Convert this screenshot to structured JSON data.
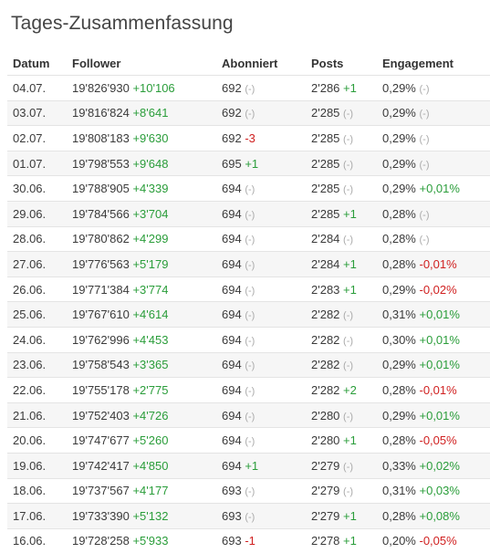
{
  "title": "Tages-Zusammenfassung",
  "headers": [
    "Datum",
    "Follower",
    "Abonniert",
    "Posts",
    "Engagement"
  ],
  "rows": [
    {
      "date": "04.07.",
      "followers": "19'826'930",
      "followers_delta": "+10'106",
      "subscribed": "692",
      "subscribed_delta": "(-)",
      "posts": "2'286",
      "posts_delta": "+1",
      "engagement": "0,29%",
      "engagement_delta": "(-)"
    },
    {
      "date": "03.07.",
      "followers": "19'816'824",
      "followers_delta": "+8'641",
      "subscribed": "692",
      "subscribed_delta": "(-)",
      "posts": "2'285",
      "posts_delta": "(-)",
      "engagement": "0,29%",
      "engagement_delta": "(-)"
    },
    {
      "date": "02.07.",
      "followers": "19'808'183",
      "followers_delta": "+9'630",
      "subscribed": "692",
      "subscribed_delta": "-3",
      "posts": "2'285",
      "posts_delta": "(-)",
      "engagement": "0,29%",
      "engagement_delta": "(-)"
    },
    {
      "date": "01.07.",
      "followers": "19'798'553",
      "followers_delta": "+9'648",
      "subscribed": "695",
      "subscribed_delta": "+1",
      "posts": "2'285",
      "posts_delta": "(-)",
      "engagement": "0,29%",
      "engagement_delta": "(-)"
    },
    {
      "date": "30.06.",
      "followers": "19'788'905",
      "followers_delta": "+4'339",
      "subscribed": "694",
      "subscribed_delta": "(-)",
      "posts": "2'285",
      "posts_delta": "(-)",
      "engagement": "0,29%",
      "engagement_delta": "+0,01%"
    },
    {
      "date": "29.06.",
      "followers": "19'784'566",
      "followers_delta": "+3'704",
      "subscribed": "694",
      "subscribed_delta": "(-)",
      "posts": "2'285",
      "posts_delta": "+1",
      "engagement": "0,28%",
      "engagement_delta": "(-)"
    },
    {
      "date": "28.06.",
      "followers": "19'780'862",
      "followers_delta": "+4'299",
      "subscribed": "694",
      "subscribed_delta": "(-)",
      "posts": "2'284",
      "posts_delta": "(-)",
      "engagement": "0,28%",
      "engagement_delta": "(-)"
    },
    {
      "date": "27.06.",
      "followers": "19'776'563",
      "followers_delta": "+5'179",
      "subscribed": "694",
      "subscribed_delta": "(-)",
      "posts": "2'284",
      "posts_delta": "+1",
      "engagement": "0,28%",
      "engagement_delta": "-0,01%"
    },
    {
      "date": "26.06.",
      "followers": "19'771'384",
      "followers_delta": "+3'774",
      "subscribed": "694",
      "subscribed_delta": "(-)",
      "posts": "2'283",
      "posts_delta": "+1",
      "engagement": "0,29%",
      "engagement_delta": "-0,02%"
    },
    {
      "date": "25.06.",
      "followers": "19'767'610",
      "followers_delta": "+4'614",
      "subscribed": "694",
      "subscribed_delta": "(-)",
      "posts": "2'282",
      "posts_delta": "(-)",
      "engagement": "0,31%",
      "engagement_delta": "+0,01%"
    },
    {
      "date": "24.06.",
      "followers": "19'762'996",
      "followers_delta": "+4'453",
      "subscribed": "694",
      "subscribed_delta": "(-)",
      "posts": "2'282",
      "posts_delta": "(-)",
      "engagement": "0,30%",
      "engagement_delta": "+0,01%"
    },
    {
      "date": "23.06.",
      "followers": "19'758'543",
      "followers_delta": "+3'365",
      "subscribed": "694",
      "subscribed_delta": "(-)",
      "posts": "2'282",
      "posts_delta": "(-)",
      "engagement": "0,29%",
      "engagement_delta": "+0,01%"
    },
    {
      "date": "22.06.",
      "followers": "19'755'178",
      "followers_delta": "+2'775",
      "subscribed": "694",
      "subscribed_delta": "(-)",
      "posts": "2'282",
      "posts_delta": "+2",
      "engagement": "0,28%",
      "engagement_delta": "-0,01%"
    },
    {
      "date": "21.06.",
      "followers": "19'752'403",
      "followers_delta": "+4'726",
      "subscribed": "694",
      "subscribed_delta": "(-)",
      "posts": "2'280",
      "posts_delta": "(-)",
      "engagement": "0,29%",
      "engagement_delta": "+0,01%"
    },
    {
      "date": "20.06.",
      "followers": "19'747'677",
      "followers_delta": "+5'260",
      "subscribed": "694",
      "subscribed_delta": "(-)",
      "posts": "2'280",
      "posts_delta": "+1",
      "engagement": "0,28%",
      "engagement_delta": "-0,05%"
    },
    {
      "date": "19.06.",
      "followers": "19'742'417",
      "followers_delta": "+4'850",
      "subscribed": "694",
      "subscribed_delta": "+1",
      "posts": "2'279",
      "posts_delta": "(-)",
      "engagement": "0,33%",
      "engagement_delta": "+0,02%"
    },
    {
      "date": "18.06.",
      "followers": "19'737'567",
      "followers_delta": "+4'177",
      "subscribed": "693",
      "subscribed_delta": "(-)",
      "posts": "2'279",
      "posts_delta": "(-)",
      "engagement": "0,31%",
      "engagement_delta": "+0,03%"
    },
    {
      "date": "17.06.",
      "followers": "19'733'390",
      "followers_delta": "+5'132",
      "subscribed": "693",
      "subscribed_delta": "(-)",
      "posts": "2'279",
      "posts_delta": "+1",
      "engagement": "0,28%",
      "engagement_delta": "+0,08%"
    },
    {
      "date": "16.06.",
      "followers": "19'728'258",
      "followers_delta": "+5'933",
      "subscribed": "693",
      "subscribed_delta": "-1",
      "posts": "2'278",
      "posts_delta": "+1",
      "engagement": "0,20%",
      "engagement_delta": "-0,05%"
    }
  ],
  "colors": {
    "positive": "#2a9d3a",
    "negative": "#d02020",
    "neutral": "#aaaaaa"
  }
}
